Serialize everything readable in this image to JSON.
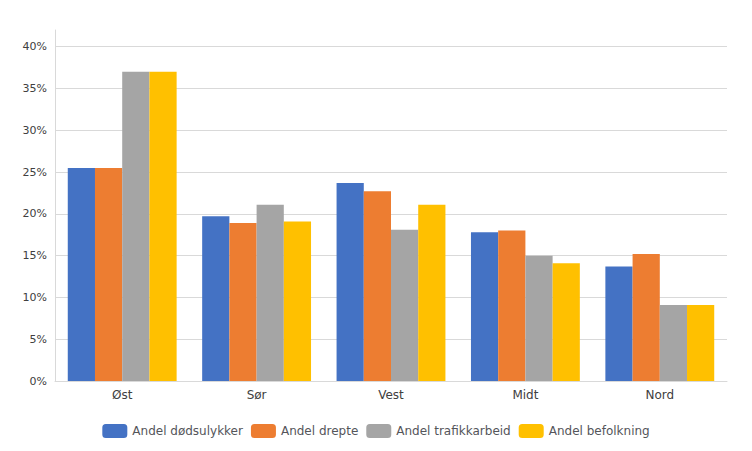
{
  "chart_data": {
    "type": "bar",
    "categories": [
      "Øst",
      "Sør",
      "Vest",
      "Midt",
      "Nord"
    ],
    "series": [
      {
        "name": "Andel dødsulykker",
        "color": "#4472C4",
        "values": [
          0.255,
          0.197,
          0.237,
          0.178,
          0.137
        ]
      },
      {
        "name": "Andel drepte",
        "color": "#ED7D31",
        "values": [
          0.255,
          0.189,
          0.227,
          0.18,
          0.152
        ]
      },
      {
        "name": "Andel trafikkarbeid",
        "color": "#A5A5A5",
        "values": [
          0.37,
          0.211,
          0.181,
          0.15,
          0.091
        ]
      },
      {
        "name": "Andel befolkning",
        "color": "#FFC000",
        "values": [
          0.37,
          0.191,
          0.211,
          0.141,
          0.091
        ]
      }
    ],
    "ylim": [
      0,
      0.42
    ],
    "yticks": [
      {
        "value": 0.0,
        "label": "0%"
      },
      {
        "value": 0.05,
        "label": "5%"
      },
      {
        "value": 0.1,
        "label": "10%"
      },
      {
        "value": 0.15,
        "label": "15%"
      },
      {
        "value": 0.2,
        "label": "20%"
      },
      {
        "value": 0.25,
        "label": "25%"
      },
      {
        "value": 0.3,
        "label": "30%"
      },
      {
        "value": 0.35,
        "label": "35%"
      },
      {
        "value": 0.4,
        "label": "40%"
      }
    ],
    "grid": true,
    "legend": "bottom"
  }
}
